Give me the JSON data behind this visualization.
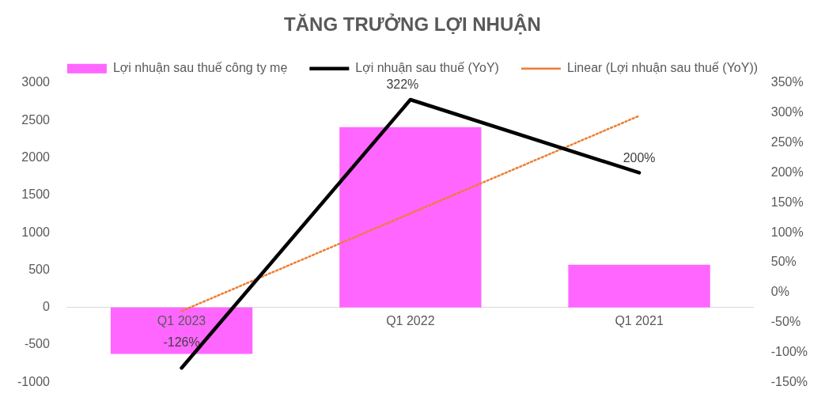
{
  "chart_data": {
    "type": "bar",
    "title": "TĂNG TRƯỞNG LỢI NHUẬN",
    "categories": [
      "Q1 2023",
      "Q1 2022",
      "Q1 2021"
    ],
    "series": [
      {
        "name": "Lợi nhuận sau thuế công ty mẹ",
        "color": "#ff66ff",
        "values": [
          -620,
          2410,
          570
        ]
      },
      {
        "type": "line",
        "name": "Lợi nhuận sau thuế (YoY)",
        "color": "#000000",
        "axis": "y2",
        "values": [
          -126,
          322,
          200
        ],
        "value_labels": [
          "-126%",
          "322%",
          "200%"
        ]
      },
      {
        "type": "line",
        "name": "Linear (Lợi nhuận sau thuế (YoY))",
        "color": "#ed7d31",
        "axis": "y2",
        "line_style": "dotted",
        "values": [
          -31,
          132,
          295
        ]
      }
    ],
    "ylim": [
      -1000,
      3000
    ],
    "yticks": [
      -1000,
      -500,
      0,
      500,
      1000,
      1500,
      2000,
      2500,
      3000
    ],
    "y2lim": [
      -150,
      350
    ],
    "y2ticks": [
      {
        "value": -150,
        "label": "-150%"
      },
      {
        "value": -100,
        "label": "-100%"
      },
      {
        "value": -50,
        "label": "-50%"
      },
      {
        "value": 0,
        "label": "0%"
      },
      {
        "value": 50,
        "label": "50%"
      },
      {
        "value": 100,
        "label": "100%"
      },
      {
        "value": 150,
        "label": "150%"
      },
      {
        "value": 200,
        "label": "200%"
      },
      {
        "value": 250,
        "label": "250%"
      },
      {
        "value": 300,
        "label": "300%"
      },
      {
        "value": 350,
        "label": "350%"
      }
    ],
    "grid": false,
    "legend": "top",
    "marker": "none"
  }
}
